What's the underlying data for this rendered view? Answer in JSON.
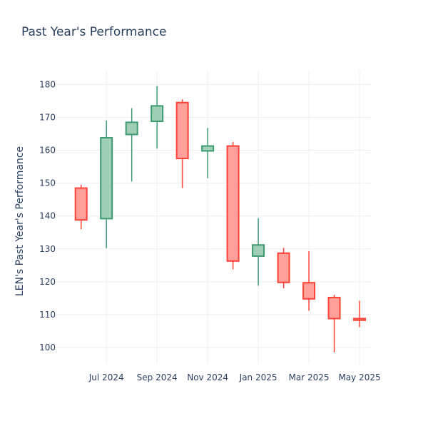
{
  "chart_data": {
    "type": "candlestick",
    "title": "Past Year's Performance",
    "xlabel": "",
    "ylabel": "LEN's Past Year's Performance",
    "ylim": [
      95,
      184
    ],
    "yticks": [
      100,
      110,
      120,
      130,
      140,
      150,
      160,
      170,
      180
    ],
    "xticks": [
      {
        "label": "Jul 2024",
        "pos": 1
      },
      {
        "label": "Sep 2024",
        "pos": 3
      },
      {
        "label": "Nov 2024",
        "pos": 5
      },
      {
        "label": "Jan 2025",
        "pos": 7
      },
      {
        "label": "Mar 2025",
        "pos": 9
      },
      {
        "label": "May 2025",
        "pos": 11
      }
    ],
    "xlim": [
      -0.95,
      11.45
    ],
    "grid": true,
    "legend": "none",
    "colors": {
      "increasing_line": "#3d9970",
      "increasing_fill": "#9ecfb6",
      "decreasing_line": "#ff4136",
      "decreasing_fill": "#ffa09b",
      "grid": "#eeeeee",
      "text": "#2a3f5f"
    },
    "candles": [
      {
        "pos": 0,
        "open": 148.5,
        "high": 149.5,
        "low": 136.0,
        "close": 138.8
      },
      {
        "pos": 1,
        "open": 139.2,
        "high": 169.0,
        "low": 130.2,
        "close": 163.8
      },
      {
        "pos": 2,
        "open": 164.8,
        "high": 172.8,
        "low": 150.5,
        "close": 168.5
      },
      {
        "pos": 3,
        "open": 168.8,
        "high": 179.5,
        "low": 160.5,
        "close": 173.5
      },
      {
        "pos": 4,
        "open": 174.5,
        "high": 175.5,
        "low": 148.5,
        "close": 157.5
      },
      {
        "pos": 5,
        "open": 159.8,
        "high": 166.8,
        "low": 151.5,
        "close": 161.3
      },
      {
        "pos": 6,
        "open": 161.3,
        "high": 162.5,
        "low": 123.8,
        "close": 126.3
      },
      {
        "pos": 7,
        "open": 127.8,
        "high": 139.3,
        "low": 118.8,
        "close": 131.2
      },
      {
        "pos": 8,
        "open": 128.7,
        "high": 130.3,
        "low": 118.0,
        "close": 119.8
      },
      {
        "pos": 9,
        "open": 119.7,
        "high": 129.3,
        "low": 111.2,
        "close": 114.8
      },
      {
        "pos": 10,
        "open": 115.2,
        "high": 116.0,
        "low": 98.5,
        "close": 108.8
      },
      {
        "pos": 11,
        "open": 108.8,
        "high": 114.2,
        "low": 106.2,
        "close": 108.3
      }
    ]
  }
}
